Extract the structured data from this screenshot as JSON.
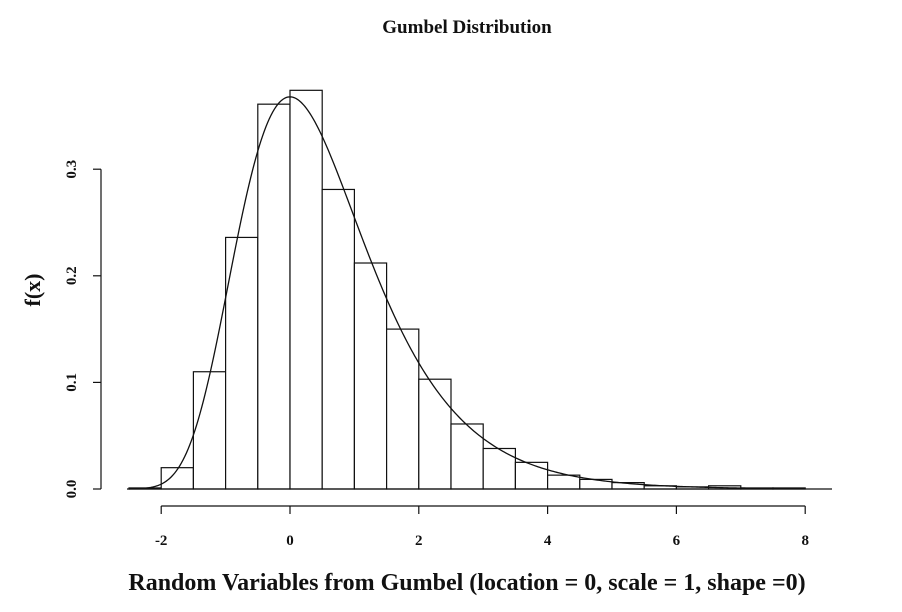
{
  "chart_data": {
    "type": "bar",
    "title": "Gumbel Distribution",
    "xlabel": "Random Variables from Gumbel (location = 0, scale = 1, shape =0)",
    "ylabel": "f(x)",
    "bin_edges": [
      -2.5,
      -2.0,
      -1.5,
      -1.0,
      -0.5,
      0.0,
      0.5,
      1.0,
      1.5,
      2.0,
      2.5,
      3.0,
      3.5,
      4.0,
      4.5,
      5.0,
      5.5,
      6.0,
      6.5,
      7.0,
      7.5,
      8.0
    ],
    "values": [
      0.001,
      0.02,
      0.11,
      0.236,
      0.361,
      0.374,
      0.281,
      0.212,
      0.15,
      0.103,
      0.061,
      0.038,
      0.025,
      0.013,
      0.009,
      0.006,
      0.003,
      0.002,
      0.003,
      0.001,
      0.001
    ],
    "density_curve": {
      "distribution": "gumbel",
      "location": 0,
      "scale": 1
    },
    "xlim": [
      -2.5,
      8.5
    ],
    "ylim": [
      0,
      0.39
    ],
    "x_ticks": [
      -2,
      0,
      2,
      4,
      6,
      8
    ],
    "x_tick_labels": [
      "-2",
      "0",
      "2",
      "4",
      "6",
      "8"
    ],
    "y_ticks": [
      0.0,
      0.1,
      0.2,
      0.3
    ],
    "y_tick_labels": [
      "0.0",
      "0.1",
      "0.2",
      "0.3"
    ],
    "grid": false,
    "legend": "none"
  }
}
